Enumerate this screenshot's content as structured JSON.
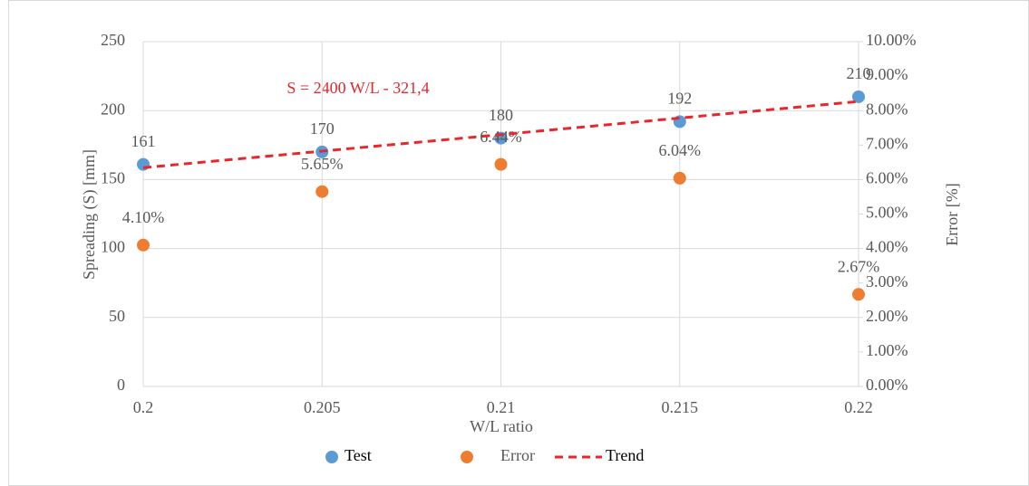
{
  "chart_data": {
    "type": "scatter",
    "x_label": "W/L ratio",
    "y_label": "Spreading (S) [mm]",
    "y2_label": "Error [%]",
    "annotation": "S = 2400 W/L - 321,4",
    "annotation_color": "#e8262b",
    "x": [
      0.2,
      0.205,
      0.21,
      0.215,
      0.22
    ],
    "series": [
      {
        "name": "Test",
        "color": "#5b9bd5",
        "values": [
          161,
          170,
          180,
          192,
          210
        ]
      },
      {
        "name": "Error",
        "color": "#ed7d31",
        "axis": "y2",
        "values": [
          4.1,
          5.65,
          6.44,
          6.04,
          2.67
        ],
        "value_labels": [
          "4.10%",
          "5.65%",
          "6.44%",
          "6.04%",
          "2.67%"
        ]
      },
      {
        "name": "Trend",
        "color": "#e8262b",
        "style": "dashed",
        "x": [
          0.2,
          0.22
        ],
        "values": [
          158.6,
          206.6
        ]
      }
    ],
    "xlim": [
      0.2,
      0.22
    ],
    "xticks": [
      0.2,
      0.205,
      0.21,
      0.215,
      0.22
    ],
    "ylim": [
      0,
      250
    ],
    "yticks": [
      0,
      50,
      100,
      150,
      200,
      250
    ],
    "y2lim": [
      0,
      10
    ],
    "y2ticks": [
      {
        "value": 0,
        "label": "0.00%"
      },
      {
        "value": 1,
        "label": "1.00%"
      },
      {
        "value": 2,
        "label": "2.00%"
      },
      {
        "value": 3,
        "label": "3.00%"
      },
      {
        "value": 4,
        "label": "4.00%"
      },
      {
        "value": 5,
        "label": "5.00%"
      },
      {
        "value": 6,
        "label": "6.00%"
      },
      {
        "value": 7,
        "label": "7.00%"
      },
      {
        "value": 8,
        "label": "8.00%"
      },
      {
        "value": 9,
        "label": "9.00%"
      },
      {
        "value": 10,
        "label": "10.00%"
      }
    ],
    "grid": true,
    "legend": "bottom"
  }
}
